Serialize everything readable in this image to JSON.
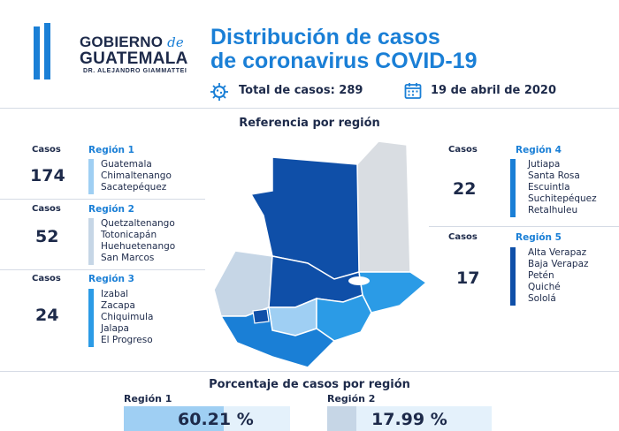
{
  "header": {
    "logo": {
      "line1": "GOBIERNO",
      "line1_script": "de",
      "line2": "GUATEMALA",
      "line3": "DR. ALEJANDRO GIAMMATTEI"
    },
    "title_line1": "Distribución de casos",
    "title_line2": "de coronavirus COVID-19",
    "total_cases": "Total de casos: 289",
    "date": "19 de abril de 2020",
    "icons": [
      "virus-icon",
      "calendar-icon"
    ]
  },
  "reference_title": "Referencia por región",
  "regions": [
    {
      "casos_label": "Casos",
      "cases": "174",
      "name": "Región 1",
      "color": "#9fcff3",
      "departments": [
        "Guatemala",
        "Chimaltenango",
        "Sacatepéquez"
      ]
    },
    {
      "casos_label": "Casos",
      "cases": "52",
      "name": "Región 2",
      "color": "#c6d6e6",
      "departments": [
        "Quetzaltenango",
        "Totonicapán",
        "Huehuetenango",
        "San Marcos"
      ]
    },
    {
      "casos_label": "Casos",
      "cases": "24",
      "name": "Región 3",
      "color": "#2b9be6",
      "departments": [
        "Izabal",
        "Zacapa",
        "Chiquimula",
        "Jalapa",
        "El Progreso"
      ]
    },
    {
      "casos_label": "Casos",
      "cases": "22",
      "name": "Región 4",
      "color": "#1a7fd6",
      "departments": [
        "Jutiapa",
        "Santa Rosa",
        "Escuintla",
        "Suchitepéquez",
        "Retalhuleu"
      ]
    },
    {
      "casos_label": "Casos",
      "cases": "17",
      "name": "Región 5",
      "color": "#0f4fa8",
      "departments": [
        "Alta Verapaz",
        "Baja Verapaz",
        "Petén",
        "Quiché",
        "Sololá"
      ]
    }
  ],
  "percentage": {
    "title": "Porcentaje de casos por región",
    "items": [
      {
        "label": "Región 1",
        "value": "60.21 %",
        "fraction": 0.6021,
        "color": "#9fcff3"
      },
      {
        "label": "Región 2",
        "value": "17.99 %",
        "fraction": 0.1799,
        "color": "#c6d6e6"
      }
    ]
  }
}
